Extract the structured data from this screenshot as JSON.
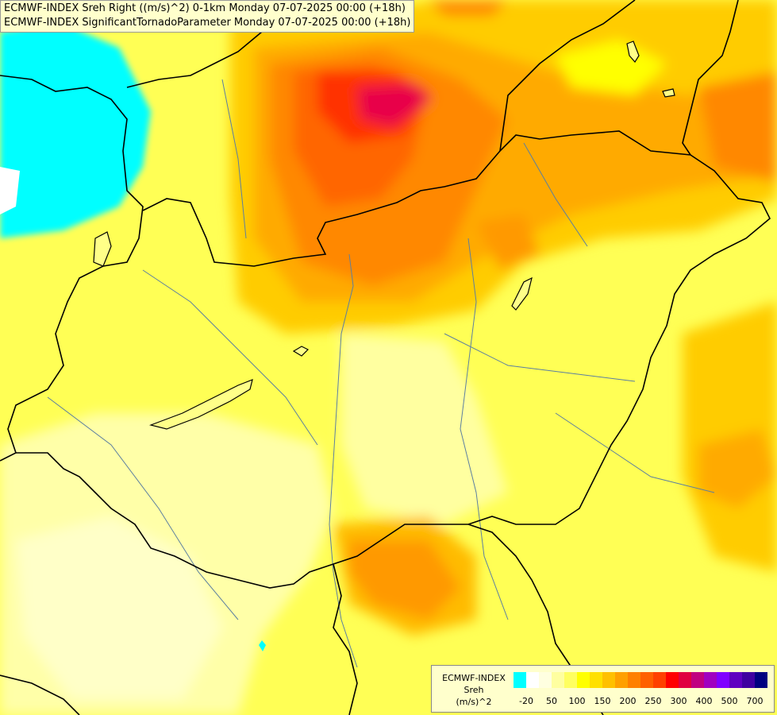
{
  "titles": [
    "ECMWF-INDEX Sreh Right ((m/s)^2) 0-1km Monday 07-07-2025 00:00 (+18h)",
    "ECMWF-INDEX SignificantTornadoParameter Monday 07-07-2025 00:00 (+18h)"
  ],
  "legend": {
    "line1": "ECMWF-INDEX",
    "line2": "Sreh",
    "line3": "(m/s)^2",
    "colors": [
      "#00ffff",
      "#ffffff",
      "#ffffe0",
      "#ffffa0",
      "#ffff60",
      "#ffff00",
      "#ffe000",
      "#ffc000",
      "#ffa000",
      "#ff8000",
      "#ff6000",
      "#ff4000",
      "#ff0000",
      "#e00040",
      "#c00080",
      "#a000c0",
      "#8000ff",
      "#6000c0",
      "#4000a0",
      "#000080"
    ],
    "tick_labels": [
      "-20",
      "50",
      "100",
      "150",
      "200",
      "250",
      "300",
      "400",
      "500",
      "700"
    ]
  }
}
